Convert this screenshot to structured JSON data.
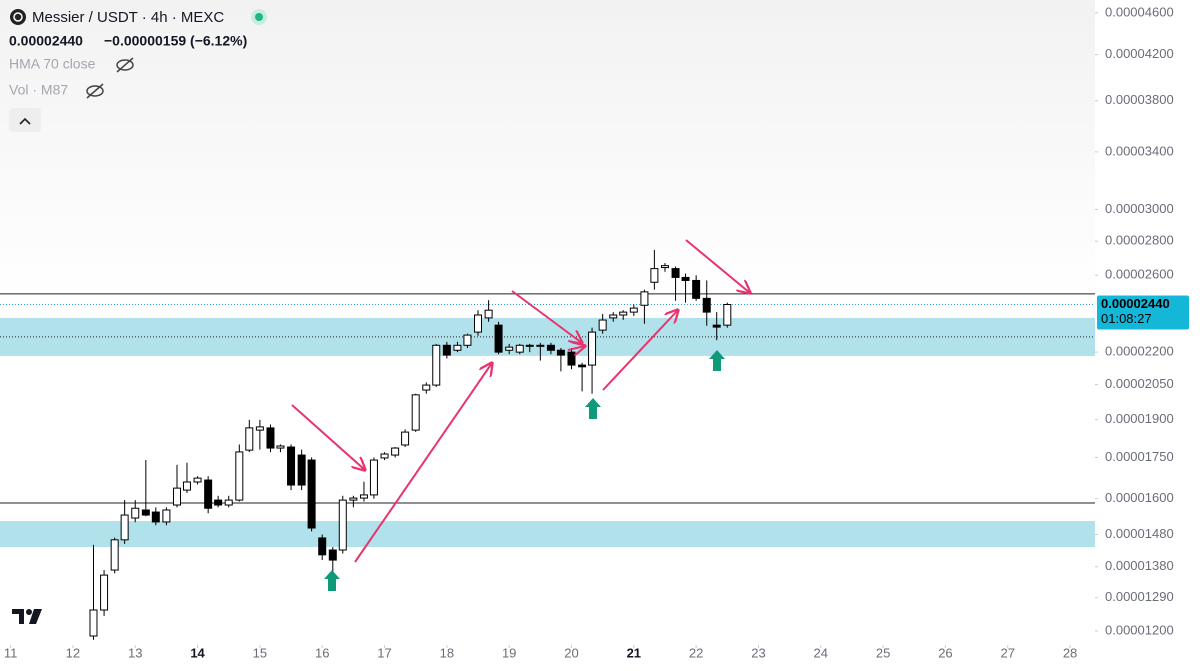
{
  "chart_data": {
    "type": "candlestick",
    "title": "Messier / USDT · 4h · MEXC",
    "last_price": {
      "value": 2.44e-05,
      "label": "0.00002440"
    },
    "change": "−0.00000159 (−6.12%)",
    "countdown": "01:08:27",
    "indicators": [
      "HMA 70 close",
      "Vol · M87"
    ],
    "log_scale": true,
    "up_color": "#ffffff",
    "down_color": "#000000",
    "zone_color": "#a9dfe9",
    "x": [
      12.33,
      12.5,
      12.67,
      12.83,
      13,
      13.17,
      13.33,
      13.5,
      13.67,
      13.83,
      14,
      14.17,
      14.33,
      14.5,
      14.67,
      14.83,
      15,
      15.17,
      15.33,
      15.5,
      15.67,
      15.83,
      16,
      16.17,
      16.33,
      16.5,
      16.67,
      16.83,
      17,
      17.17,
      17.33,
      17.5,
      17.67,
      17.83,
      18,
      18.17,
      18.33,
      18.5,
      18.67,
      18.83,
      19,
      19.17,
      19.33,
      19.5,
      19.67,
      19.83,
      20,
      20.17,
      20.33,
      20.5,
      20.67,
      20.83,
      21,
      21.17,
      21.33,
      21.5,
      21.67,
      21.83,
      22,
      22.17,
      22.33,
      22.5
    ],
    "open": [
      1.187e-05,
      1.256e-05,
      1.37e-05,
      1.463e-05,
      1.534e-05,
      1.561e-05,
      1.554e-05,
      1.521e-05,
      1.578e-05,
      1.63e-05,
      1.659e-05,
      1.666e-05,
      1.595e-05,
      1.578e-05,
      1.595e-05,
      1.778e-05,
      1.857e-05,
      1.866e-05,
      1.786e-05,
      1.79e-05,
      1.759e-05,
      1.74e-05,
      1.469e-05,
      1.431e-05,
      1.431e-05,
      1.595e-05,
      1.602e-05,
      1.613e-05,
      1.748e-05,
      1.759e-05,
      1.798e-05,
      1.857e-05,
      2.026e-05,
      2.048e-05,
      2.233e-05,
      2.209e-05,
      2.233e-05,
      2.298e-05,
      2.37e-05,
      2.333e-05,
      2.209e-05,
      2.2e-05,
      2.228e-05,
      2.228e-05,
      2.233e-05,
      2.209e-05,
      2.2e-05,
      2.139e-05,
      2.139e-05,
      2.308e-05,
      2.37e-05,
      2.385e-05,
      2.4e-05,
      2.436e-05,
      2.561e-05,
      2.644e-05,
      2.638e-05,
      2.588e-05,
      2.571e-05,
      2.473e-05,
      2.333e-05,
      2.333e-05
    ],
    "high": [
      1.447e-05,
      1.37e-05,
      1.47e-05,
      1.595e-05,
      1.595e-05,
      1.74e-05,
      1.57e-05,
      1.57e-05,
      1.722e-05,
      1.73e-05,
      1.68e-05,
      1.68e-05,
      1.61e-05,
      1.61e-05,
      1.8e-05,
      1.899e-05,
      1.899e-05,
      1.88e-05,
      1.8e-05,
      1.8e-05,
      1.78e-05,
      1.75e-05,
      1.48e-05,
      1.44e-05,
      1.61e-05,
      1.61e-05,
      1.66e-05,
      1.75e-05,
      1.77e-05,
      1.79e-05,
      1.86e-05,
      2.01e-05,
      2.06e-05,
      2.24e-05,
      2.25e-05,
      2.25e-05,
      2.29e-05,
      2.41e-05,
      2.463e-05,
      2.35e-05,
      2.24e-05,
      2.24e-05,
      2.24e-05,
      2.245e-05,
      2.245e-05,
      2.22e-05,
      2.22e-05,
      2.15e-05,
      2.32e-05,
      2.39e-05,
      2.4e-05,
      2.41e-05,
      2.44e-05,
      2.52e-05,
      2.747e-05,
      2.67e-05,
      2.65e-05,
      2.61e-05,
      2.6e-05,
      2.571e-05,
      2.4e-05,
      2.45e-05
    ],
    "low": [
      1.177e-05,
      1.24e-05,
      1.36e-05,
      1.45e-05,
      1.52e-05,
      1.54e-05,
      1.51e-05,
      1.51e-05,
      1.57e-05,
      1.62e-05,
      1.65e-05,
      1.55e-05,
      1.57e-05,
      1.57e-05,
      1.59e-05,
      1.77e-05,
      1.78e-05,
      1.77e-05,
      1.77e-05,
      1.63e-05,
      1.63e-05,
      1.49e-05,
      1.4e-05,
      1.347e-05,
      1.42e-05,
      1.57e-05,
      1.59e-05,
      1.6e-05,
      1.74e-05,
      1.75e-05,
      1.79e-05,
      1.85e-05,
      2.01e-05,
      2.04e-05,
      2.17e-05,
      2.2e-05,
      2.22e-05,
      2.28e-05,
      2.35e-05,
      2.19e-05,
      2.19e-05,
      2.19e-05,
      2.2e-05,
      2.16e-05,
      2.19e-05,
      2.11e-05,
      2.12e-05,
      2.02e-05,
      2.01e-05,
      2.29e-05,
      2.35e-05,
      2.36e-05,
      2.38e-05,
      2.34e-05,
      2.52e-05,
      2.62e-05,
      2.46e-05,
      2.45e-05,
      2.46e-05,
      2.33e-05,
      2.258e-05,
      2.32e-05
    ],
    "close": [
      1.256e-05,
      1.355e-05,
      1.463e-05,
      1.544e-05,
      1.567e-05,
      1.544e-05,
      1.521e-05,
      1.561e-05,
      1.637e-05,
      1.659e-05,
      1.673e-05,
      1.567e-05,
      1.578e-05,
      1.595e-05,
      1.771e-05,
      1.866e-05,
      1.87e-05,
      1.786e-05,
      1.794e-05,
      1.648e-05,
      1.648e-05,
      1.501e-05,
      1.416e-05,
      1.4e-05,
      1.595e-05,
      1.602e-05,
      1.613e-05,
      1.74e-05,
      1.763e-05,
      1.786e-05,
      1.849e-05,
      2.005e-05,
      2.048e-05,
      2.233e-05,
      2.186e-05,
      2.233e-05,
      2.283e-05,
      2.385e-05,
      2.41e-05,
      2.2e-05,
      2.224e-05,
      2.233e-05,
      2.233e-05,
      2.233e-05,
      2.209e-05,
      2.186e-05,
      2.139e-05,
      2.131e-05,
      2.298e-05,
      2.359e-05,
      2.385e-05,
      2.4e-05,
      2.421e-05,
      2.508e-05,
      2.638e-05,
      2.655e-05,
      2.588e-05,
      2.571e-05,
      2.473e-05,
      2.4e-05,
      2.323e-05,
      2.44e-05
    ],
    "hlines": [
      2.497e-05,
      1.585e-05
    ],
    "dotted_line": 2.274e-05,
    "zones": [
      [
        2.182e-05,
        2.37e-05
      ],
      [
        1.44e-05,
        1.524e-05
      ]
    ],
    "xlim": [
      10.83,
      28.4
    ],
    "ylim": [
      1.164e-05,
      4.73e-05
    ],
    "xticks": [
      11,
      12,
      13,
      14,
      15,
      16,
      17,
      18,
      19,
      20,
      21,
      22,
      23,
      24,
      25,
      26,
      27,
      28
    ],
    "bold_xticks": [
      14,
      21
    ],
    "yticks": [
      {
        "value": 1.2e-05,
        "label": "0.00001200"
      },
      {
        "value": 1.29e-05,
        "label": "0.00001290"
      },
      {
        "value": 1.38e-05,
        "label": "0.00001380"
      },
      {
        "value": 1.48e-05,
        "label": "0.00001480"
      },
      {
        "value": 1.6e-05,
        "label": "0.00001600"
      },
      {
        "value": 1.75e-05,
        "label": "0.00001750"
      },
      {
        "value": 1.9e-05,
        "label": "0.00001900"
      },
      {
        "value": 2.05e-05,
        "label": "0.00002050"
      },
      {
        "value": 2.2e-05,
        "label": "0.00002200"
      },
      {
        "value": 2.6e-05,
        "label": "0.00002600"
      },
      {
        "value": 2.8e-05,
        "label": "0.00002800"
      },
      {
        "value": 3e-05,
        "label": "0.00003000"
      },
      {
        "value": 3.4e-05,
        "label": "0.00003400"
      },
      {
        "value": 3.8e-05,
        "label": "0.00003800"
      },
      {
        "value": 4.2e-05,
        "label": "0.00004200"
      },
      {
        "value": 4.6e-05,
        "label": "0.00004600"
      }
    ]
  }
}
